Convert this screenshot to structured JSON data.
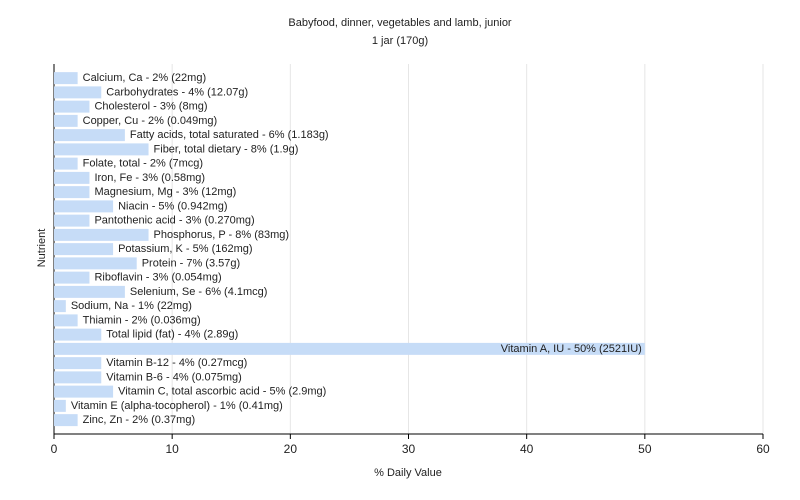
{
  "chart_data": {
    "type": "barh",
    "title": "Babyfood, dinner, vegetables and lamb, junior",
    "subtitle": "1 jar (170g)",
    "x_label": "% Daily Value",
    "y_label": "Nutrient",
    "categories": [
      "Calcium, Ca - 2% (22mg)",
      "Carbohydrates - 4% (12.07g)",
      "Cholesterol - 3% (8mg)",
      "Copper, Cu - 2% (0.049mg)",
      "Fatty acids, total saturated - 6% (1.183g)",
      "Fiber, total dietary - 8% (1.9g)",
      "Folate, total - 2% (7mcg)",
      "Iron, Fe - 3% (0.58mg)",
      "Magnesium, Mg - 3% (12mg)",
      "Niacin - 5% (0.942mg)",
      "Pantothenic acid - 3% (0.270mg)",
      "Phosphorus, P - 8% (83mg)",
      "Potassium, K - 5% (162mg)",
      "Protein - 7% (3.57g)",
      "Riboflavin - 3% (0.054mg)",
      "Selenium, Se - 6% (4.1mcg)",
      "Sodium, Na - 1% (22mg)",
      "Thiamin - 2% (0.036mg)",
      "Total lipid (fat) - 4% (2.89g)",
      "Vitamin A, IU - 50% (2521IU)",
      "Vitamin B-12 - 4% (0.27mcg)",
      "Vitamin B-6 - 4% (0.075mg)",
      "Vitamin C, total ascorbic acid - 5% (2.9mg)",
      "Vitamin E (alpha-tocopherol) - 1% (0.41mg)",
      "Zinc, Zn - 2% (0.37mg)"
    ],
    "values": [
      2,
      4,
      3,
      2,
      6,
      8,
      2,
      3,
      3,
      5,
      3,
      8,
      5,
      7,
      3,
      6,
      1,
      2,
      4,
      50,
      4,
      4,
      5,
      1,
      2
    ],
    "color": "#c6dcf7",
    "xlim": [
      0,
      60
    ],
    "xticks": [
      0,
      10,
      20,
      30,
      40,
      50,
      60
    ],
    "grid": true
  }
}
